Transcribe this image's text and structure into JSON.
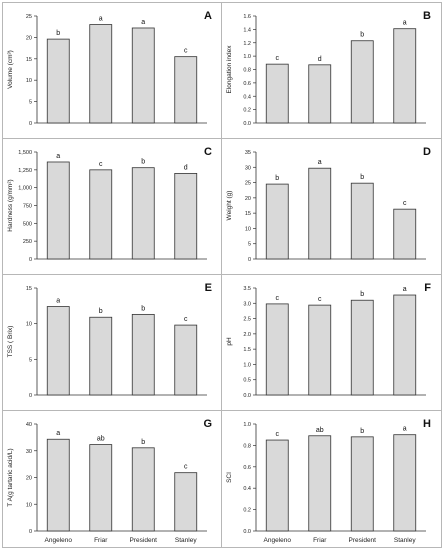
{
  "figure": {
    "bar_fill": "#d9d9d9",
    "bar_stroke": "#333333",
    "axis_color": "#333333",
    "frame_color": "#b7b7b7"
  },
  "chart_data": [
    {
      "id": "A",
      "type": "bar",
      "categories": [
        "Angeleno",
        "Friar",
        "President",
        "Stanley"
      ],
      "values": [
        19.6,
        23.0,
        22.2,
        15.5
      ],
      "letters": [
        "b",
        "a",
        "a",
        "c"
      ],
      "ylabel": "Volume (cm³)",
      "ylim": [
        0,
        25
      ],
      "ticks": [
        0,
        5,
        10,
        15,
        20,
        25
      ],
      "tick_labels": [
        "0",
        "5",
        "10",
        "15",
        "20",
        "25"
      ],
      "show_xlabels": false
    },
    {
      "id": "B",
      "type": "bar",
      "categories": [
        "Angeleno",
        "Friar",
        "President",
        "Stanley"
      ],
      "values": [
        0.88,
        0.87,
        1.23,
        1.41
      ],
      "letters": [
        "c",
        "d",
        "b",
        "a"
      ],
      "ylabel": "Elongation index",
      "ylim": [
        0,
        1.6
      ],
      "ticks": [
        0,
        0.2,
        0.4,
        0.6,
        0.8,
        1.0,
        1.2,
        1.4,
        1.6
      ],
      "tick_labels": [
        "0.0",
        "0.2",
        "0.4",
        "0.6",
        "0.8",
        "1.0",
        "1.2",
        "1.4",
        "1.6"
      ],
      "show_xlabels": false
    },
    {
      "id": "C",
      "type": "bar",
      "categories": [
        "Angeleno",
        "Friar",
        "President",
        "Stanley"
      ],
      "values": [
        1360,
        1250,
        1280,
        1200
      ],
      "letters": [
        "a",
        "c",
        "b",
        "d"
      ],
      "ylabel": "Hardness (g/mm²)",
      "ylim": [
        0,
        1500
      ],
      "ticks": [
        0,
        250,
        500,
        750,
        1000,
        1250,
        1500
      ],
      "tick_labels": [
        "0",
        "250",
        "500",
        "750",
        "1,000",
        "1,250",
        "1,500"
      ],
      "show_xlabels": false
    },
    {
      "id": "D",
      "type": "bar",
      "categories": [
        "Angeleno",
        "Friar",
        "President",
        "Stanley"
      ],
      "values": [
        24.5,
        29.7,
        24.8,
        16.3
      ],
      "letters": [
        "b",
        "a",
        "b",
        "c"
      ],
      "ylabel": "Weight (g)",
      "ylim": [
        0,
        35
      ],
      "ticks": [
        0,
        5,
        10,
        15,
        20,
        25,
        30,
        35
      ],
      "tick_labels": [
        "0",
        "5",
        "10",
        "15",
        "20",
        "25",
        "30",
        "35"
      ],
      "show_xlabels": false
    },
    {
      "id": "E",
      "type": "bar",
      "categories": [
        "Angeleno",
        "Friar",
        "President",
        "Stanley"
      ],
      "values": [
        12.4,
        10.9,
        11.3,
        9.8
      ],
      "letters": [
        "a",
        "b",
        "b",
        "c"
      ],
      "ylabel": "TSS ( Brix)",
      "ylim": [
        0,
        15
      ],
      "ticks": [
        0,
        5,
        10,
        15
      ],
      "tick_labels": [
        "0",
        "5",
        "10",
        "15"
      ],
      "show_xlabels": false
    },
    {
      "id": "F",
      "type": "bar",
      "categories": [
        "Angeleno",
        "Friar",
        "President",
        "Stanley"
      ],
      "values": [
        2.98,
        2.94,
        3.1,
        3.27
      ],
      "letters": [
        "c",
        "c",
        "b",
        "a"
      ],
      "ylabel": "pH",
      "ylim": [
        0,
        3.5
      ],
      "ticks": [
        0,
        0.5,
        1.0,
        1.5,
        2.0,
        2.5,
        3.0,
        3.5
      ],
      "tick_labels": [
        "0.0",
        "0.5",
        "1.0",
        "1.5",
        "2.0",
        "2.5",
        "3.0",
        "3.5"
      ],
      "show_xlabels": false
    },
    {
      "id": "G",
      "type": "bar",
      "categories": [
        "Angeleno",
        "Friar",
        "President",
        "Stanley"
      ],
      "values": [
        34.3,
        32.3,
        31.1,
        21.8
      ],
      "letters": [
        "a",
        "ab",
        "b",
        "c"
      ],
      "ylabel": "T A(g tartaric acid/L)",
      "ylim": [
        0,
        40
      ],
      "ticks": [
        0,
        10,
        20,
        30,
        40
      ],
      "tick_labels": [
        "0",
        "10",
        "20",
        "30",
        "40"
      ],
      "show_xlabels": true
    },
    {
      "id": "H",
      "type": "bar",
      "categories": [
        "Angeleno",
        "Friar",
        "President",
        "Stanley"
      ],
      "values": [
        0.85,
        0.89,
        0.88,
        0.9
      ],
      "letters": [
        "c",
        "ab",
        "b",
        "a"
      ],
      "ylabel": "SCI",
      "ylim": [
        0,
        1.0
      ],
      "ticks": [
        0,
        0.2,
        0.4,
        0.6,
        0.8,
        1.0
      ],
      "tick_labels": [
        "0.0",
        "0.2",
        "0.4",
        "0.6",
        "0.8",
        "1.0"
      ],
      "show_xlabels": true
    }
  ]
}
